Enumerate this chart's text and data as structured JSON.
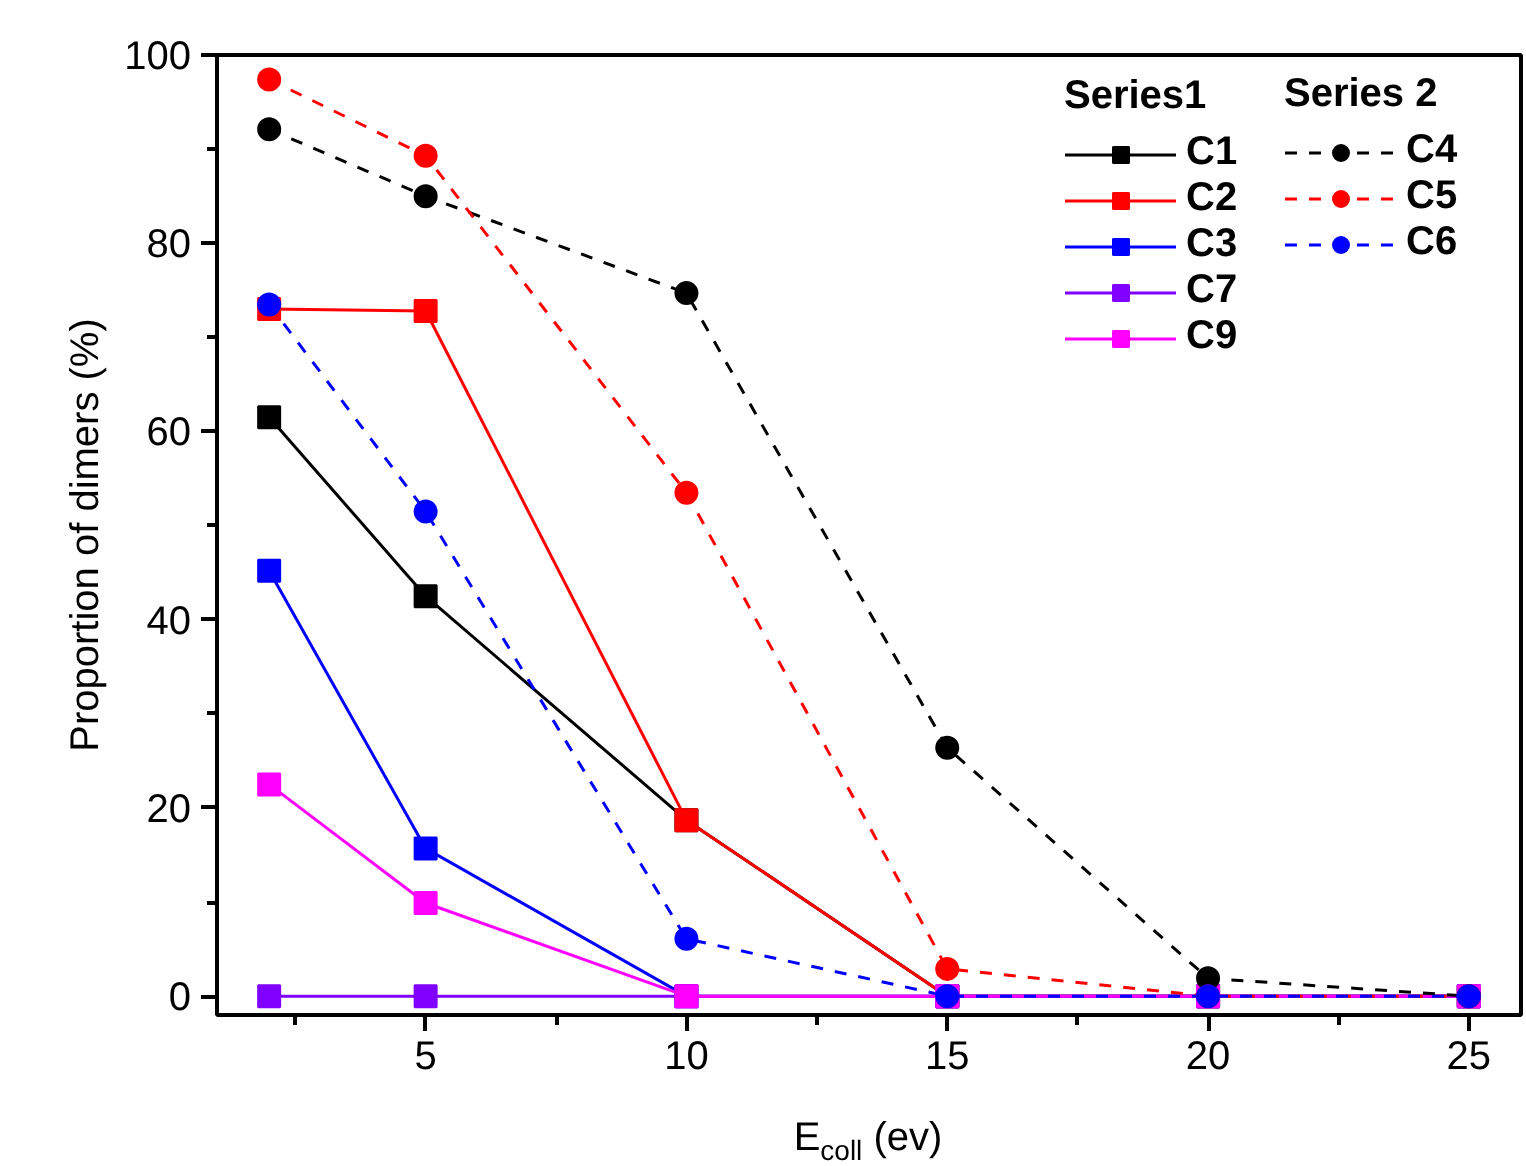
{
  "chart_data": {
    "type": "line",
    "xlabel": "E$_{coll}$ (ev)",
    "ylabel": "Proportion of dimers (%)",
    "x": [
      2,
      5,
      10,
      15,
      20,
      25
    ],
    "xlim": [
      1,
      26
    ],
    "xticks": [
      5,
      10,
      15,
      20,
      25
    ],
    "ylim": [
      -2,
      100
    ],
    "yticks": [
      0,
      20,
      40,
      60,
      80,
      100
    ],
    "grid": false,
    "legend": "top right",
    "annotations": [
      "Series1",
      "Series 2"
    ],
    "series": [
      {
        "name": "C1",
        "color": "#000000",
        "marker": "square",
        "line_style": "solid",
        "values": [
          61.5,
          42.5,
          18.7,
          0,
          0,
          0
        ]
      },
      {
        "name": "C2",
        "color": "#ff0000",
        "marker": "square",
        "line_style": "solid",
        "values": [
          73.0,
          72.8,
          18.7,
          0,
          0,
          0
        ]
      },
      {
        "name": "C3",
        "color": "#0000ff",
        "marker": "square",
        "line_style": "solid",
        "values": [
          45.2,
          15.7,
          0,
          0,
          0,
          0
        ]
      },
      {
        "name": "C7",
        "color": "#8000ff",
        "marker": "square",
        "line_style": "solid",
        "values": [
          0,
          0,
          0,
          0,
          0,
          0
        ]
      },
      {
        "name": "C9",
        "color": "#ff00ff",
        "marker": "square",
        "line_style": "solid",
        "values": [
          22.5,
          9.9,
          0,
          0,
          0,
          0
        ]
      },
      {
        "name": "C4",
        "color": "#000000",
        "marker": "circle",
        "line_style": "dashed",
        "values": [
          92.1,
          85.0,
          74.7,
          26.4,
          1.9,
          0
        ]
      },
      {
        "name": "C5",
        "color": "#ff0000",
        "marker": "circle",
        "line_style": "dashed",
        "values": [
          97.4,
          89.3,
          53.5,
          2.9,
          0,
          0
        ]
      },
      {
        "name": "C6",
        "color": "#0000ff",
        "marker": "circle",
        "line_style": "dashed",
        "values": [
          73.5,
          51.5,
          6.1,
          0,
          0,
          0
        ]
      }
    ]
  }
}
